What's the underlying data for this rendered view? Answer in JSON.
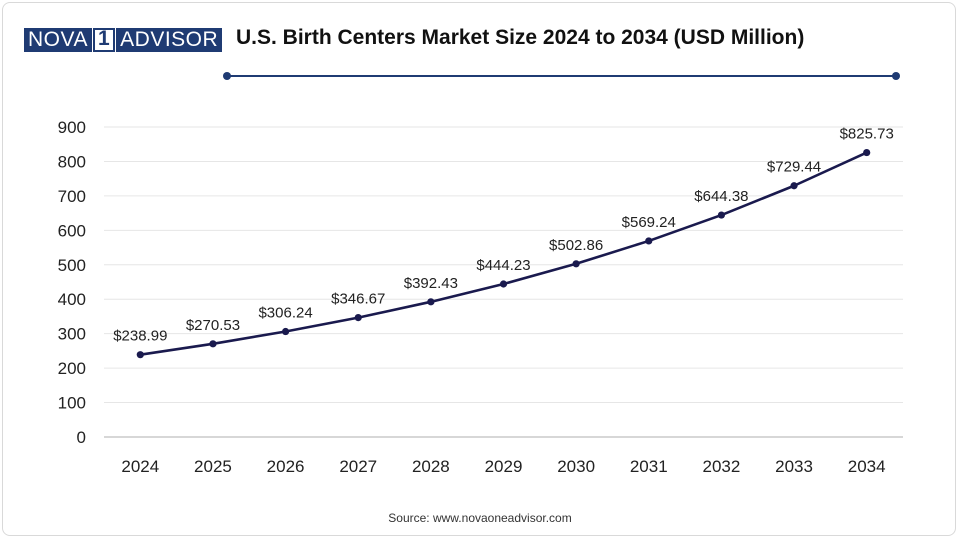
{
  "header": {
    "logo": {
      "part1": "NOVA",
      "part2": "1",
      "part3": "ADVISOR"
    },
    "title": "U.S. Birth Centers Market Size 2024 to 2034 (USD Million)"
  },
  "footer": {
    "source": "Source: www.novaoneadvisor.com"
  },
  "colors": {
    "line": "#1a1a4e",
    "accent": "#1f3b73",
    "grid": "#e6e6e6"
  },
  "chart_data": {
    "type": "line",
    "title": "U.S. Birth Centers Market Size 2024 to 2034 (USD Million)",
    "xlabel": "",
    "ylabel": "",
    "categories": [
      "2024",
      "2025",
      "2026",
      "2027",
      "2028",
      "2029",
      "2030",
      "2031",
      "2032",
      "2033",
      "2034"
    ],
    "series": [
      {
        "values": [
          238.99,
          270.53,
          306.24,
          346.67,
          392.43,
          444.23,
          502.86,
          569.24,
          644.38,
          729.44,
          825.73
        ],
        "labels": [
          "$238.99",
          "$270.53",
          "$306.24",
          "$346.67",
          "$392.43",
          "$444.23",
          "$502.86",
          "$569.24",
          "$644.38",
          "$729.44",
          "$825.73"
        ]
      }
    ],
    "yticks": [
      0,
      100,
      200,
      300,
      400,
      500,
      600,
      700,
      800,
      900
    ],
    "ylim": [
      0,
      900
    ],
    "grid": true,
    "legend": "none"
  }
}
